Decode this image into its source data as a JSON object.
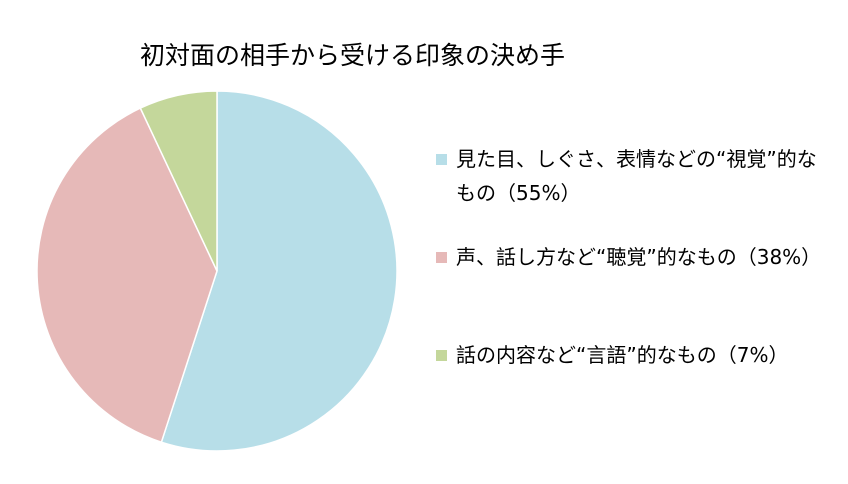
{
  "chart_data": {
    "type": "pie",
    "title": "初対面の相手から受ける印象の決め手",
    "categories": [
      "見た目、しぐさ、表情などの“視覚”的なもの（55%）",
      "声、話し方など“聴覚”的なもの（38%）",
      "話の内容など“言語”的なもの（7%）"
    ],
    "values": [
      55,
      38,
      7
    ],
    "colors": [
      "#b7dee8",
      "#e6b9b8",
      "#c4d79b"
    ]
  }
}
